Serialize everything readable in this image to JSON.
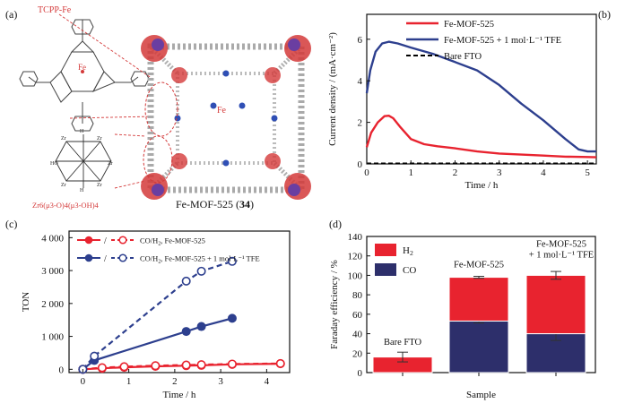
{
  "panels": {
    "a": {
      "label": "(a)",
      "porphyrin_label": "TCPP-Fe",
      "fe_label": "Fe",
      "cluster_label": "Zr6(μ3-O)4(μ3-OH)4",
      "mof_name": "Fe-MOF-525",
      "compound_number": "34",
      "colors": {
        "metal_red": "#d43a3a",
        "zr_purple": "#6a3ea1",
        "carbon_gray": "#b8b8b8",
        "fe_blue": "#2f4fb5"
      }
    }
  },
  "chart_data": [
    {
      "id": "b",
      "panel_label": "(b)",
      "type": "line",
      "xlabel": "Time / h",
      "ylabel": "Current density / (mA·cm⁻²)",
      "xlim": [
        0,
        5.2
      ],
      "ylim": [
        0,
        7.2
      ],
      "xticks": [
        0,
        1,
        2,
        3,
        4,
        5
      ],
      "yticks": [
        0,
        2,
        4,
        6
      ],
      "legend_position": "top-right",
      "series": [
        {
          "name": "Fe-MOF-525",
          "color": "#e8232f",
          "style": "solid",
          "x": [
            0,
            0.1,
            0.25,
            0.4,
            0.5,
            0.6,
            0.75,
            1.0,
            1.3,
            1.6,
            2.0,
            2.5,
            3.0,
            3.5,
            4.0,
            4.5,
            5.0,
            5.2
          ],
          "y": [
            0.8,
            1.5,
            2.0,
            2.3,
            2.32,
            2.2,
            1.8,
            1.2,
            0.95,
            0.85,
            0.75,
            0.6,
            0.5,
            0.45,
            0.4,
            0.35,
            0.33,
            0.32
          ]
        },
        {
          "name": "Fe-MOF-525 + 1 mol·L⁻¹ TFE",
          "color": "#2d3f8e",
          "style": "solid",
          "x": [
            0,
            0.08,
            0.2,
            0.35,
            0.5,
            0.7,
            1.0,
            1.5,
            2.0,
            2.5,
            3.0,
            3.5,
            4.0,
            4.5,
            4.8,
            5.0,
            5.2
          ],
          "y": [
            3.4,
            4.5,
            5.4,
            5.8,
            5.88,
            5.8,
            5.6,
            5.3,
            4.9,
            4.5,
            3.8,
            2.9,
            2.1,
            1.2,
            0.7,
            0.6,
            0.6
          ]
        },
        {
          "name": "Bare FTO",
          "color": "#000000",
          "style": "dashed",
          "x": [
            0,
            5.2
          ],
          "y": [
            0.02,
            0.02
          ]
        }
      ]
    },
    {
      "id": "c",
      "panel_label": "(c)",
      "type": "line",
      "xlabel": "Time / h",
      "ylabel": "TON",
      "xlim": [
        -0.3,
        4.5
      ],
      "ylim": [
        -100,
        4200
      ],
      "xticks": [
        0,
        1,
        2,
        3,
        4
      ],
      "yticks": [
        0,
        1000,
        2000,
        3000,
        4000
      ],
      "ytick_labels": [
        "0",
        "1 000",
        "2 000",
        "3 000",
        "4 000"
      ],
      "legend_position": "top-left",
      "legend_separator": "/",
      "legend": [
        {
          "label": "CO/H2, Fe-MOF-525",
          "color": "#e8232f"
        },
        {
          "label": "CO/H2, Fe-MOF-525 + 1 mol·L⁻¹ TFE",
          "color": "#2d3f8e"
        }
      ],
      "series": [
        {
          "name": "CO, Fe-MOF-525",
          "color": "#e8232f",
          "style": "solid",
          "marker": "filled",
          "x": [
            0,
            0.42,
            0.9,
            1.58,
            2.25,
            2.58,
            3.25,
            4.3
          ],
          "y": [
            0,
            30,
            60,
            90,
            110,
            120,
            150,
            170
          ]
        },
        {
          "name": "H2, Fe-MOF-525",
          "color": "#e8232f",
          "style": "dashed",
          "marker": "open",
          "x": [
            0,
            0.42,
            0.9,
            1.58,
            2.25,
            2.58,
            3.25,
            4.3
          ],
          "y": [
            0,
            50,
            80,
            110,
            130,
            140,
            160,
            175
          ]
        },
        {
          "name": "CO, Fe-MOF-525 + 1 mol·L⁻¹ TFE",
          "color": "#2d3f8e",
          "style": "solid",
          "marker": "filled",
          "x": [
            0,
            0.25,
            2.25,
            2.58,
            3.25
          ],
          "y": [
            0,
            270,
            1150,
            1300,
            1550
          ]
        },
        {
          "name": "H2, Fe-MOF-525 + 1 mol·L⁻¹ TFE",
          "color": "#2d3f8e",
          "style": "dashed",
          "marker": "open",
          "x": [
            0,
            0.25,
            2.25,
            2.58,
            3.25
          ],
          "y": [
            0,
            400,
            2680,
            2980,
            3280
          ]
        }
      ]
    },
    {
      "id": "d",
      "panel_label": "(d)",
      "type": "bar",
      "stacked": true,
      "xlabel": "Sample",
      "ylabel": "Faraday efficiency / %",
      "ylim": [
        0,
        140
      ],
      "yticks": [
        0,
        20,
        40,
        60,
        80,
        100,
        120,
        140
      ],
      "legend_position": "top-left",
      "categories": [
        "Bare FTO",
        "Fe-MOF-525",
        "Fe-MOF-525 + 1 mol·L⁻¹ TFE"
      ],
      "category_label_lines": [
        [
          "Bare FTO"
        ],
        [
          "Fe-MOF-525"
        ],
        [
          "Fe-MOF-525",
          "+ 1 mol·L⁻¹ TFE"
        ]
      ],
      "series": [
        {
          "name": "CO",
          "color": "#2d2f6b",
          "values": [
            0,
            53,
            40
          ],
          "errors": [
            0,
            2,
            7
          ]
        },
        {
          "name": "H2",
          "color": "#e8232f",
          "values": [
            16,
            45,
            60
          ],
          "errors": [
            5,
            1,
            4
          ]
        }
      ],
      "legend": [
        {
          "label": "H2",
          "color": "#e8232f"
        },
        {
          "label": "CO",
          "color": "#2d2f6b"
        }
      ]
    }
  ]
}
